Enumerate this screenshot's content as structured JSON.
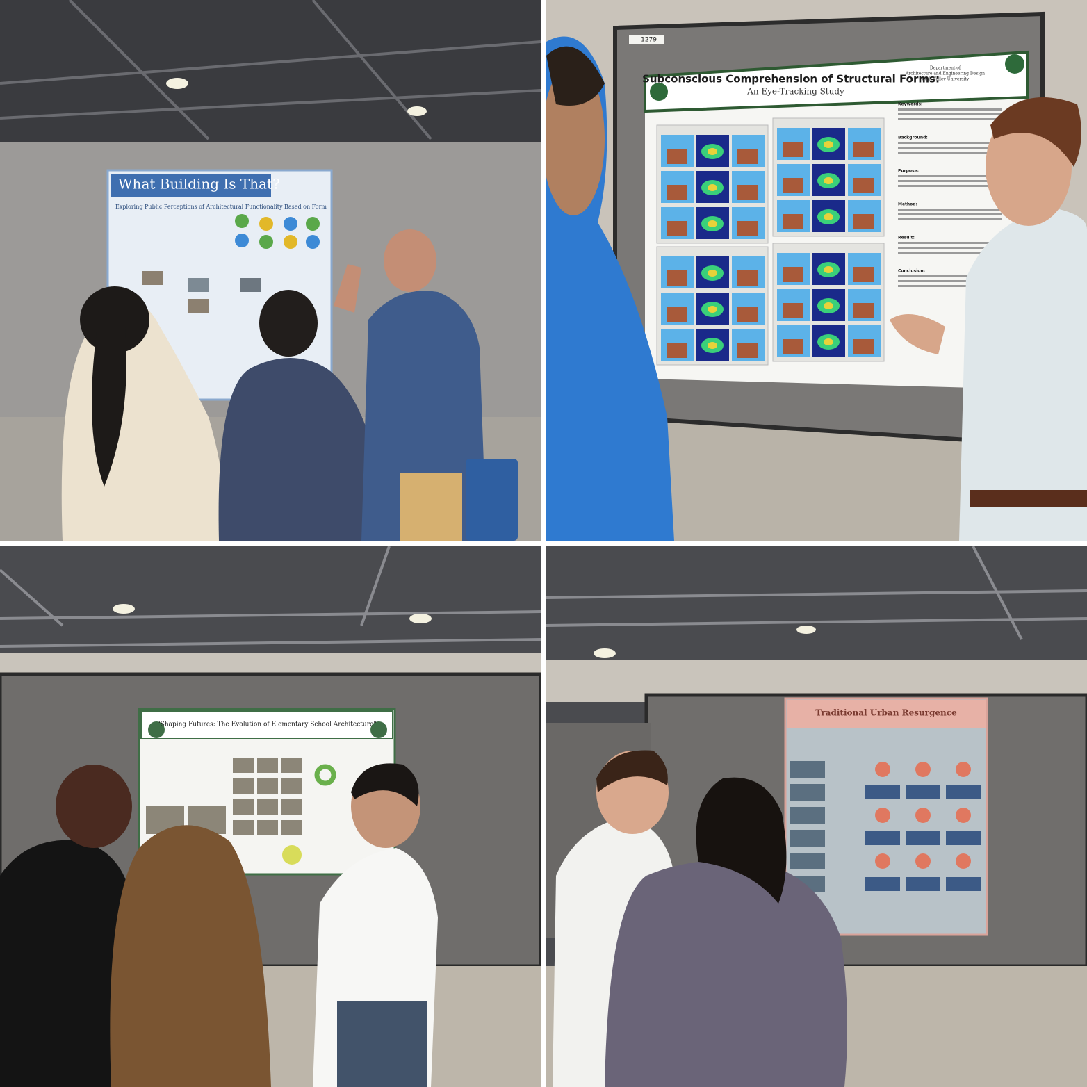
{
  "photos": [
    {
      "poster_title": "What Building Is That?",
      "poster_subtitle": "Exploring Public Perceptions of Architectural Functionality Based on Form"
    },
    {
      "poster_title": "Subconscious Comprehension of Structural Forms:",
      "poster_subtitle": "An Eye-Tracking Study",
      "board_number": "1279",
      "affiliation": [
        "Department of",
        "Architecture and Engineering Design",
        "Utah Valley University"
      ],
      "sections": [
        "Keywords:",
        "Background:",
        "Purpose:",
        "Method:",
        "Result:",
        "Conclusion:"
      ]
    },
    {
      "poster_title": "\"Shaping Futures: The Evolution of Elementary School Architecture\""
    },
    {
      "poster_title": "Traditional Urban Resurgence"
    }
  ]
}
